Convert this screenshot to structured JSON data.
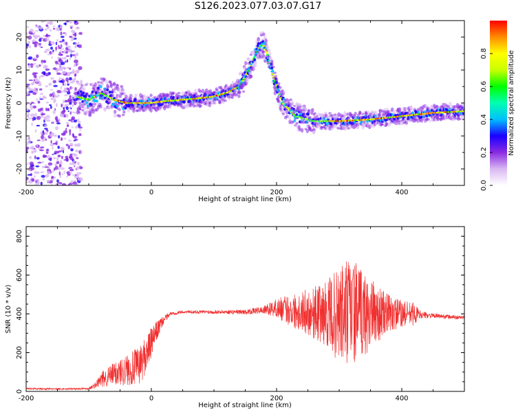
{
  "figure": {
    "title": "S126.2023.077.03.07.G17"
  },
  "chart_data": [
    {
      "type": "heatmap",
      "xlabel": "Height of straight line (km)",
      "ylabel": "Frequency (Hz)",
      "xlim": [
        -200,
        500
      ],
      "ylim": [
        -25,
        25
      ],
      "x_ticks": [
        -200,
        0,
        200,
        400
      ],
      "y_ticks": [
        -20,
        -10,
        0,
        10,
        20
      ],
      "ridge": {
        "x": [
          -120,
          -100,
          -80,
          -60,
          -40,
          -20,
          0,
          20,
          50,
          80,
          100,
          120,
          140,
          150,
          160,
          170,
          178,
          185,
          195,
          210,
          230,
          260,
          300,
          350,
          400,
          450,
          500
        ],
        "freq": [
          2,
          1,
          3,
          1,
          0,
          0,
          0,
          0.5,
          1,
          1.5,
          2,
          3,
          5,
          8,
          12,
          16,
          18,
          15,
          8,
          0,
          -4,
          -5.5,
          -5.5,
          -5,
          -4,
          -3,
          -2.5
        ]
      },
      "colorbar": {
        "label": "Normalized spectral amplitude",
        "ticks": [
          0.0,
          0.2,
          0.4,
          0.6,
          0.8
        ],
        "range": [
          0,
          1
        ],
        "colors": [
          "#ffffff",
          "#d9b8f2",
          "#8a2be2",
          "#1a00ff",
          "#00bfff",
          "#00ffb0",
          "#00ff00",
          "#c8ff00",
          "#ffff00",
          "#ff8c00",
          "#ff0000"
        ]
      }
    },
    {
      "type": "line",
      "xlabel": "Height of straight line (km)",
      "ylabel": "SNR (10 * v/v)",
      "xlim": [
        -200,
        500
      ],
      "ylim": [
        0,
        850
      ],
      "x_ticks": [
        -200,
        0,
        200,
        400
      ],
      "y_ticks": [
        0,
        200,
        400,
        600,
        800
      ],
      "color": "#f03030",
      "envelope": {
        "x": [
          -200,
          -150,
          -100,
          -90,
          -80,
          -60,
          -40,
          -20,
          -10,
          0,
          10,
          20,
          30,
          50,
          100,
          150,
          180,
          200,
          220,
          250,
          280,
          300,
          310,
          320,
          340,
          360,
          380,
          400,
          420,
          430,
          450,
          500
        ],
        "mean": [
          15,
          12,
          15,
          30,
          60,
          90,
          110,
          130,
          180,
          250,
          320,
          370,
          400,
          410,
          410,
          410,
          420,
          430,
          420,
          410,
          400,
          390,
          400,
          410,
          400,
          400,
          400,
          400,
          400,
          395,
          390,
          380
        ],
        "amp": [
          5,
          4,
          5,
          15,
          40,
          60,
          80,
          100,
          100,
          80,
          50,
          20,
          10,
          8,
          10,
          12,
          20,
          50,
          80,
          120,
          170,
          250,
          300,
          280,
          220,
          150,
          100,
          70,
          60,
          20,
          12,
          10
        ]
      }
    }
  ]
}
